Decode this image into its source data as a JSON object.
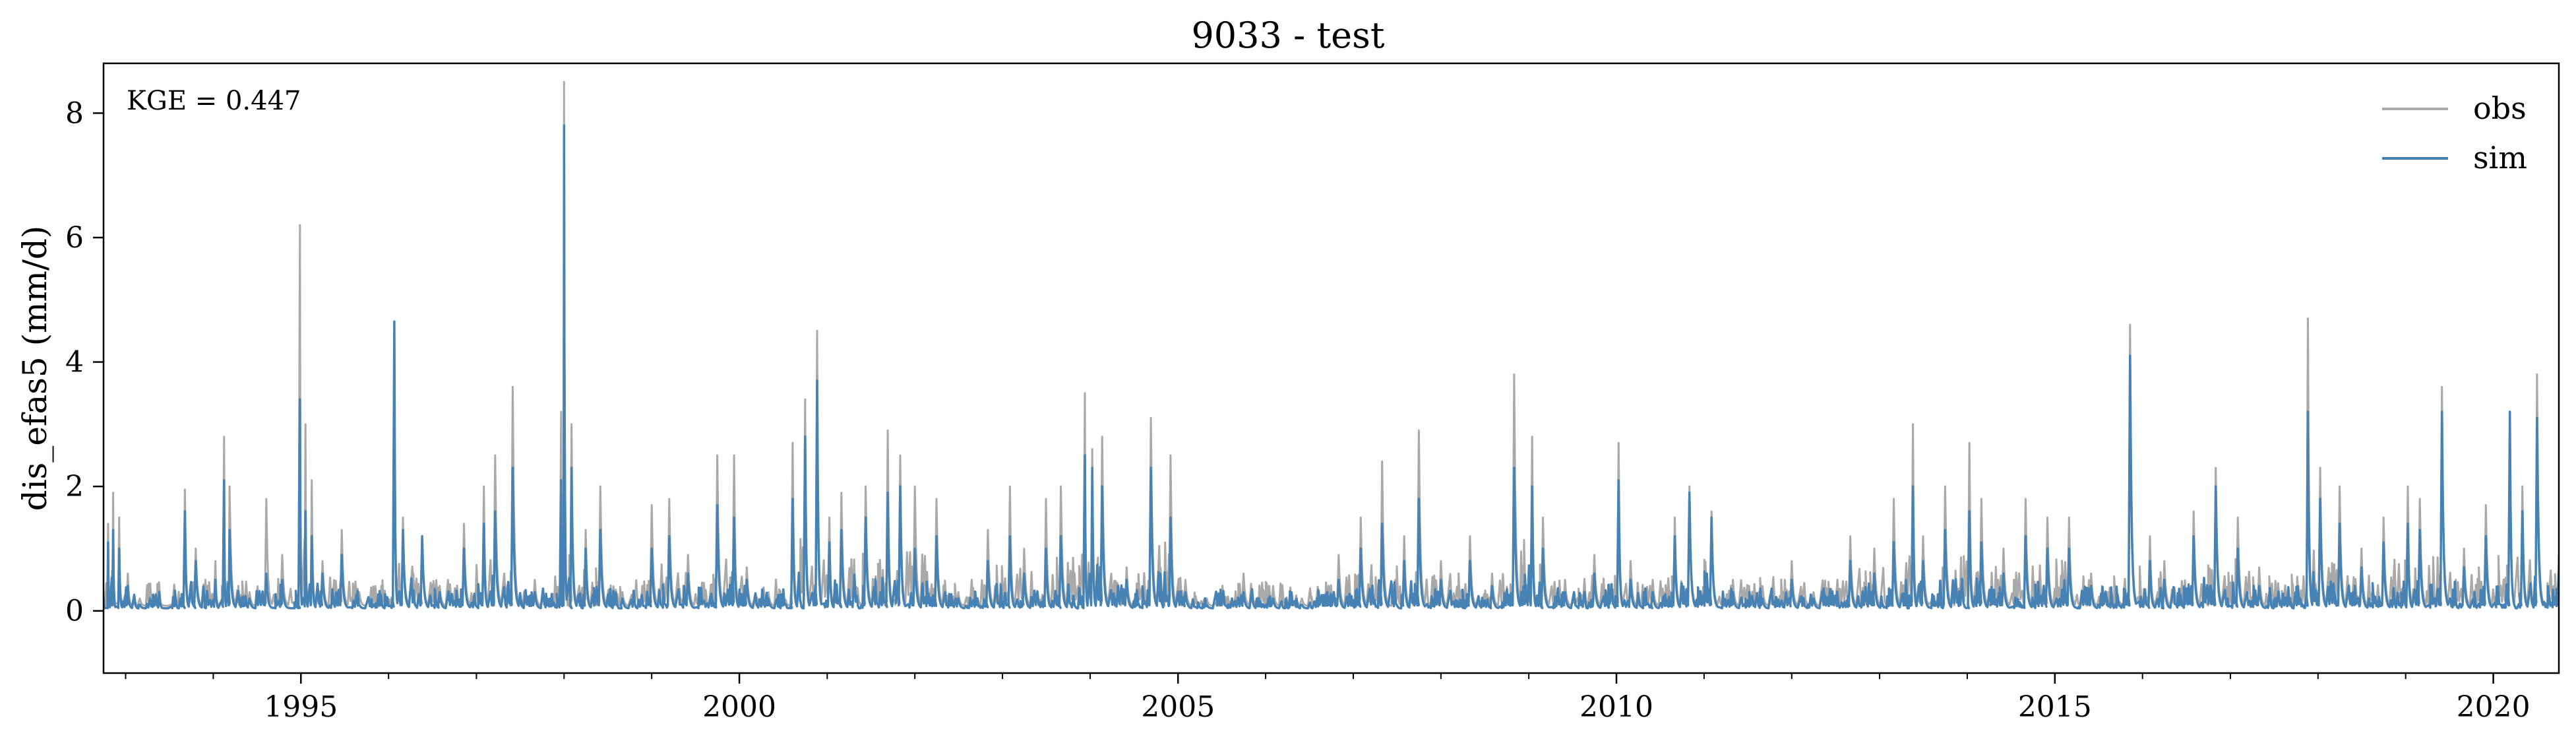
{
  "chart_data": {
    "type": "line",
    "title": "9033 - test",
    "xlabel": "",
    "ylabel": "dis_efas5 (mm/d)",
    "xlim": [
      "1992-10-01",
      "2020-09-30"
    ],
    "ylim": [
      -1,
      8.8
    ],
    "x_ticks": [
      "1995",
      "2000",
      "2005",
      "2010",
      "2015",
      "2020"
    ],
    "y_ticks": [
      0,
      2,
      4,
      6,
      8
    ],
    "grid": false,
    "legend": {
      "placement": "top-right"
    },
    "annotation": "KGE = 0.447",
    "colors": {
      "obs": "#a9a9a9",
      "sim": "#4682b4"
    },
    "series": [
      {
        "name": "obs",
        "points": [
          [
            "1992-10-01",
            0.3
          ],
          [
            "1992-10-20",
            1.4
          ],
          [
            "1992-11-10",
            1.9
          ],
          [
            "1992-12-05",
            1.5
          ],
          [
            "1993-01-10",
            0.6
          ],
          [
            "1993-03-01",
            0.2
          ],
          [
            "1993-06-01",
            0.1
          ],
          [
            "1993-09-05",
            1.95
          ],
          [
            "1993-10-20",
            1.0
          ],
          [
            "1994-01-10",
            0.8
          ],
          [
            "1994-02-15",
            2.8
          ],
          [
            "1994-03-10",
            2.0
          ],
          [
            "1994-06-01",
            0.3
          ],
          [
            "1994-08-10",
            1.8
          ],
          [
            "1994-10-15",
            0.9
          ],
          [
            "1994-12-28",
            6.2
          ],
          [
            "1995-01-20",
            3.0
          ],
          [
            "1995-02-15",
            2.1
          ],
          [
            "1995-04-01",
            0.8
          ],
          [
            "1995-06-20",
            1.3
          ],
          [
            "1995-09-01",
            0.3
          ],
          [
            "1996-01-25",
            4.6
          ],
          [
            "1996-03-01",
            1.5
          ],
          [
            "1996-05-20",
            1.2
          ],
          [
            "1996-08-01",
            0.4
          ],
          [
            "1996-11-10",
            1.4
          ],
          [
            "1997-02-01",
            2.0
          ],
          [
            "1997-03-20",
            2.5
          ],
          [
            "1997-06-01",
            3.6
          ],
          [
            "1997-09-01",
            0.5
          ],
          [
            "1997-12-20",
            3.2
          ],
          [
            "1998-01-01",
            8.5
          ],
          [
            "1998-02-01",
            3.0
          ],
          [
            "1998-04-01",
            1.3
          ],
          [
            "1998-06-01",
            2.0
          ],
          [
            "1998-09-01",
            0.3
          ],
          [
            "1999-01-01",
            1.7
          ],
          [
            "1999-03-15",
            1.8
          ],
          [
            "1999-06-01",
            0.9
          ],
          [
            "1999-10-01",
            2.5
          ],
          [
            "1999-12-10",
            2.5
          ],
          [
            "2000-02-01",
            0.7
          ],
          [
            "2000-05-01",
            0.3
          ],
          [
            "2000-08-10",
            2.7
          ],
          [
            "2000-10-01",
            3.4
          ],
          [
            "2000-11-20",
            4.5
          ],
          [
            "2001-01-10",
            1.5
          ],
          [
            "2001-03-01",
            1.9
          ],
          [
            "2001-06-10",
            2.0
          ],
          [
            "2001-09-10",
            2.9
          ],
          [
            "2001-11-01",
            2.5
          ],
          [
            "2002-01-01",
            2.0
          ],
          [
            "2002-04-01",
            1.8
          ],
          [
            "2002-07-01",
            0.3
          ],
          [
            "2002-11-01",
            1.3
          ],
          [
            "2003-02-01",
            2.0
          ],
          [
            "2003-04-01",
            1.0
          ],
          [
            "2003-07-01",
            1.8
          ],
          [
            "2003-09-01",
            2.0
          ],
          [
            "2003-12-10",
            3.5
          ],
          [
            "2004-01-10",
            2.6
          ],
          [
            "2004-02-20",
            2.8
          ],
          [
            "2004-06-01",
            0.7
          ],
          [
            "2004-09-10",
            3.1
          ],
          [
            "2004-12-01",
            2.5
          ],
          [
            "2005-02-01",
            0.5
          ],
          [
            "2005-05-01",
            0.2
          ],
          [
            "2005-10-01",
            0.6
          ],
          [
            "2006-02-01",
            0.4
          ],
          [
            "2006-06-01",
            0.2
          ],
          [
            "2006-11-01",
            0.9
          ],
          [
            "2007-02-01",
            1.5
          ],
          [
            "2007-05-01",
            2.4
          ],
          [
            "2007-08-01",
            1.2
          ],
          [
            "2007-10-01",
            2.9
          ],
          [
            "2008-01-01",
            0.8
          ],
          [
            "2008-05-01",
            1.2
          ],
          [
            "2008-08-01",
            0.6
          ],
          [
            "2008-11-01",
            3.8
          ],
          [
            "2009-01-15",
            2.8
          ],
          [
            "2009-03-01",
            1.5
          ],
          [
            "2009-06-01",
            0.5
          ],
          [
            "2009-10-01",
            0.9
          ],
          [
            "2010-01-10",
            2.7
          ],
          [
            "2010-03-01",
            0.8
          ],
          [
            "2010-06-01",
            0.5
          ],
          [
            "2010-09-01",
            1.5
          ],
          [
            "2010-11-01",
            2.0
          ],
          [
            "2011-02-01",
            1.6
          ],
          [
            "2011-05-01",
            0.5
          ],
          [
            "2011-09-01",
            0.4
          ],
          [
            "2012-01-01",
            0.8
          ],
          [
            "2012-04-01",
            0.3
          ],
          [
            "2012-09-01",
            1.2
          ],
          [
            "2012-12-10",
            1.0
          ],
          [
            "2013-03-01",
            1.8
          ],
          [
            "2013-05-20",
            3.0
          ],
          [
            "2013-07-01",
            1.2
          ],
          [
            "2013-10-01",
            2.0
          ],
          [
            "2014-01-10",
            2.7
          ],
          [
            "2014-03-01",
            1.8
          ],
          [
            "2014-06-01",
            1.0
          ],
          [
            "2014-09-01",
            1.8
          ],
          [
            "2014-12-01",
            1.5
          ],
          [
            "2015-03-01",
            1.5
          ],
          [
            "2015-06-01",
            0.6
          ],
          [
            "2015-11-10",
            4.6
          ],
          [
            "2016-02-01",
            1.2
          ],
          [
            "2016-04-01",
            0.8
          ],
          [
            "2016-08-01",
            1.6
          ],
          [
            "2016-11-01",
            2.3
          ],
          [
            "2017-02-01",
            1.5
          ],
          [
            "2017-05-01",
            0.7
          ],
          [
            "2017-11-20",
            4.7
          ],
          [
            "2018-01-10",
            2.3
          ],
          [
            "2018-04-01",
            2.0
          ],
          [
            "2018-07-01",
            1.0
          ],
          [
            "2018-10-01",
            1.5
          ],
          [
            "2019-01-10",
            2.0
          ],
          [
            "2019-03-01",
            1.8
          ],
          [
            "2019-06-01",
            3.6
          ],
          [
            "2019-09-01",
            1.0
          ],
          [
            "2019-12-01",
            1.7
          ],
          [
            "2020-03-10",
            3.0
          ],
          [
            "2020-05-01",
            2.0
          ],
          [
            "2020-07-01",
            3.8
          ],
          [
            "2020-09-30",
            0.9
          ]
        ]
      },
      {
        "name": "sim",
        "points": [
          [
            "1992-10-01",
            0.2
          ],
          [
            "1992-10-20",
            1.1
          ],
          [
            "1992-11-10",
            1.3
          ],
          [
            "1992-12-05",
            1.0
          ],
          [
            "1993-01-10",
            0.4
          ],
          [
            "1993-03-01",
            0.1
          ],
          [
            "1993-06-01",
            0.05
          ],
          [
            "1993-09-05",
            1.6
          ],
          [
            "1993-10-20",
            0.8
          ],
          [
            "1994-01-10",
            0.5
          ],
          [
            "1994-02-15",
            2.1
          ],
          [
            "1994-03-10",
            1.3
          ],
          [
            "1994-06-01",
            0.2
          ],
          [
            "1994-08-10",
            0.6
          ],
          [
            "1994-10-15",
            0.5
          ],
          [
            "1994-12-28",
            3.4
          ],
          [
            "1995-01-20",
            1.6
          ],
          [
            "1995-02-15",
            1.2
          ],
          [
            "1995-04-01",
            0.6
          ],
          [
            "1995-06-20",
            0.9
          ],
          [
            "1995-09-01",
            0.1
          ],
          [
            "1996-01-25",
            4.65
          ],
          [
            "1996-03-01",
            1.3
          ],
          [
            "1996-05-20",
            1.2
          ],
          [
            "1996-08-01",
            0.3
          ],
          [
            "1996-11-10",
            1.0
          ],
          [
            "1997-02-01",
            1.4
          ],
          [
            "1997-03-20",
            1.6
          ],
          [
            "1997-06-01",
            2.3
          ],
          [
            "1997-09-01",
            0.3
          ],
          [
            "1997-12-20",
            2.1
          ],
          [
            "1998-01-01",
            7.8
          ],
          [
            "1998-02-01",
            2.3
          ],
          [
            "1998-04-01",
            1.0
          ],
          [
            "1998-06-01",
            1.3
          ],
          [
            "1998-09-01",
            0.2
          ],
          [
            "1999-01-01",
            1.0
          ],
          [
            "1999-03-15",
            1.2
          ],
          [
            "1999-06-01",
            0.6
          ],
          [
            "1999-10-01",
            1.7
          ],
          [
            "1999-12-10",
            1.5
          ],
          [
            "2000-02-01",
            0.5
          ],
          [
            "2000-05-01",
            0.2
          ],
          [
            "2000-08-10",
            1.8
          ],
          [
            "2000-10-01",
            2.8
          ],
          [
            "2000-11-20",
            3.7
          ],
          [
            "2001-01-10",
            1.1
          ],
          [
            "2001-03-01",
            1.3
          ],
          [
            "2001-06-10",
            1.5
          ],
          [
            "2001-09-10",
            1.9
          ],
          [
            "2001-11-01",
            2.0
          ],
          [
            "2002-01-01",
            1.0
          ],
          [
            "2002-04-01",
            1.2
          ],
          [
            "2002-07-01",
            0.2
          ],
          [
            "2002-11-01",
            0.8
          ],
          [
            "2003-02-01",
            1.2
          ],
          [
            "2003-04-01",
            0.6
          ],
          [
            "2003-07-01",
            1.0
          ],
          [
            "2003-09-01",
            1.2
          ],
          [
            "2003-12-10",
            2.5
          ],
          [
            "2004-01-10",
            2.3
          ],
          [
            "2004-02-20",
            2.0
          ],
          [
            "2004-06-01",
            0.5
          ],
          [
            "2004-09-10",
            2.3
          ],
          [
            "2004-12-01",
            1.5
          ],
          [
            "2005-02-01",
            0.3
          ],
          [
            "2005-05-01",
            0.1
          ],
          [
            "2005-10-01",
            0.3
          ],
          [
            "2006-02-01",
            0.2
          ],
          [
            "2006-06-01",
            0.1
          ],
          [
            "2006-11-01",
            0.5
          ],
          [
            "2007-02-01",
            1.0
          ],
          [
            "2007-05-01",
            1.4
          ],
          [
            "2007-08-01",
            0.8
          ],
          [
            "2007-10-01",
            1.8
          ],
          [
            "2008-01-01",
            0.5
          ],
          [
            "2008-05-01",
            0.8
          ],
          [
            "2008-08-01",
            0.4
          ],
          [
            "2008-11-01",
            2.3
          ],
          [
            "2009-01-15",
            2.0
          ],
          [
            "2009-03-01",
            1.0
          ],
          [
            "2009-06-01",
            0.3
          ],
          [
            "2009-10-01",
            0.6
          ],
          [
            "2010-01-10",
            2.1
          ],
          [
            "2010-03-01",
            0.5
          ],
          [
            "2010-06-01",
            0.3
          ],
          [
            "2010-09-01",
            1.2
          ],
          [
            "2010-11-01",
            1.9
          ],
          [
            "2011-02-01",
            1.5
          ],
          [
            "2011-05-01",
            0.3
          ],
          [
            "2011-09-01",
            0.2
          ],
          [
            "2012-01-01",
            0.5
          ],
          [
            "2012-04-01",
            0.2
          ],
          [
            "2012-09-01",
            0.8
          ],
          [
            "2012-12-10",
            0.6
          ],
          [
            "2013-03-01",
            1.1
          ],
          [
            "2013-05-20",
            2.0
          ],
          [
            "2013-07-01",
            0.8
          ],
          [
            "2013-10-01",
            1.3
          ],
          [
            "2014-01-10",
            1.6
          ],
          [
            "2014-03-01",
            1.1
          ],
          [
            "2014-06-01",
            0.6
          ],
          [
            "2014-09-01",
            1.2
          ],
          [
            "2014-12-01",
            1.0
          ],
          [
            "2015-03-01",
            1.0
          ],
          [
            "2015-06-01",
            0.4
          ],
          [
            "2015-11-10",
            4.1
          ],
          [
            "2016-02-01",
            0.8
          ],
          [
            "2016-04-01",
            0.5
          ],
          [
            "2016-08-01",
            1.2
          ],
          [
            "2016-11-01",
            2.0
          ],
          [
            "2017-02-01",
            1.0
          ],
          [
            "2017-05-01",
            0.4
          ],
          [
            "2017-11-20",
            3.2
          ],
          [
            "2018-01-10",
            1.8
          ],
          [
            "2018-04-01",
            1.4
          ],
          [
            "2018-07-01",
            0.7
          ],
          [
            "2018-10-01",
            1.1
          ],
          [
            "2019-01-10",
            1.4
          ],
          [
            "2019-03-01",
            1.3
          ],
          [
            "2019-06-01",
            3.2
          ],
          [
            "2019-09-01",
            0.7
          ],
          [
            "2019-12-01",
            1.2
          ],
          [
            "2020-03-10",
            3.2
          ],
          [
            "2020-05-01",
            1.6
          ],
          [
            "2020-07-01",
            3.1
          ],
          [
            "2020-09-30",
            0.6
          ]
        ]
      }
    ]
  }
}
